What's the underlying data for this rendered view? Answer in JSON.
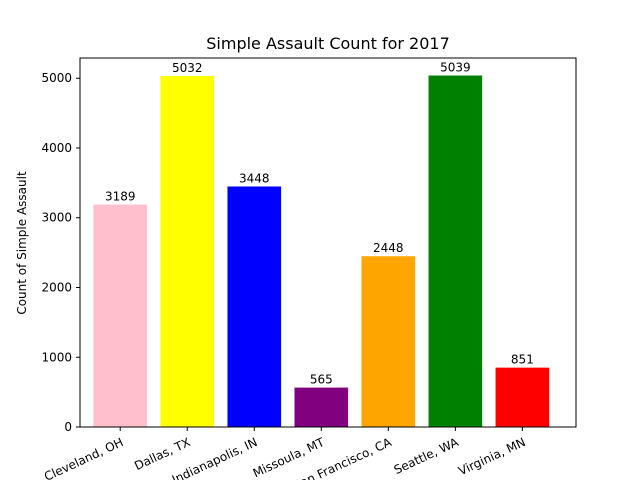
{
  "chart_data": {
    "type": "bar",
    "title": "Simple Assault Count for 2017",
    "xlabel": "",
    "ylabel": "Count of Simple Assault",
    "categories": [
      "Cleveland, OH",
      "Dallas, TX",
      "Indianapolis, IN",
      "Missoula, MT",
      "San Francisco, CA",
      "Seattle, WA",
      "Virginia, MN"
    ],
    "values": [
      3189,
      5032,
      3448,
      565,
      2448,
      5039,
      851
    ],
    "colors": [
      "#ffc0cb",
      "#ffff00",
      "#0000ff",
      "#800080",
      "#ffa500",
      "#008000",
      "#ff0000"
    ],
    "data_labels": [
      "3189",
      "5032",
      "3448",
      "565",
      "2448",
      "5039",
      "851"
    ],
    "ylim": [
      0,
      5290
    ],
    "yticks": [
      0,
      1000,
      2000,
      3000,
      4000,
      5000
    ],
    "ytick_labels": [
      "0",
      "1000",
      "2000",
      "3000",
      "4000",
      "5000"
    ],
    "xtick_rotation": 25,
    "grid": false,
    "legend": "none"
  }
}
